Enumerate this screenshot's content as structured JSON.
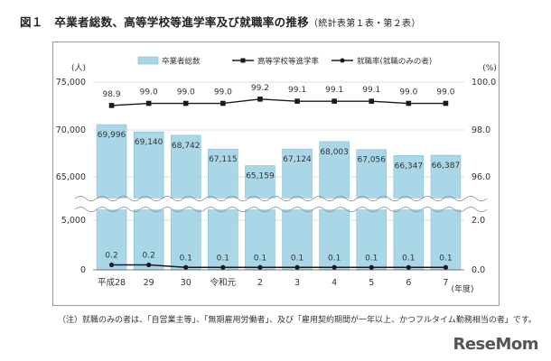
{
  "title": {
    "main": "図１　卒業者総数、高等学校等進学率及び就職率の推移",
    "sub": "（統計表第１表・第２表）"
  },
  "note": "（注）就職のみの者は、「自営業主等」、「無期雇用労働者」、及び「雇用契約期間が一年以上、かつフルタイム勤務相当の者」です。",
  "watermark": "ReseMom",
  "colors": {
    "bar": "#a9d7e8",
    "bar_stroke": "#7fbdd6",
    "line": "#1a1a1a",
    "grid": "#d0d0d0"
  },
  "chart_data": {
    "type": "bar",
    "title": "",
    "categories": [
      "平成28",
      "29",
      "30",
      "令和元",
      "2",
      "3",
      "4",
      "5",
      "6",
      "7"
    ],
    "x_unit": "(年度)",
    "y_left": {
      "unit": "(人)",
      "ticks_upper": [
        "75,000",
        "70,000",
        "65,000"
      ],
      "ticks_lower": [
        "5,000",
        "0"
      ],
      "broken_axis": true,
      "upper_range": [
        61500,
        75000
      ],
      "lower_range": [
        0,
        5000
      ]
    },
    "y_right": {
      "unit": "(%)",
      "ticks_upper": [
        "100.0",
        "98.0",
        "96.0"
      ],
      "ticks_lower": [
        "2.0",
        "0.0"
      ],
      "upper_range": [
        94.6,
        100.0
      ],
      "lower_range": [
        0,
        2.0
      ]
    },
    "legend_position": "top",
    "series": [
      {
        "name": "卒業者総数",
        "type": "bar",
        "axis": "left",
        "values": [
          69996,
          69140,
          68742,
          67115,
          65159,
          67124,
          68003,
          67056,
          66347,
          66387
        ],
        "labels": [
          "69,996",
          "69,140",
          "68,742",
          "67,115",
          "65,159",
          "67,124",
          "68,003",
          "67,056",
          "66,347",
          "66,387"
        ]
      },
      {
        "name": "高等学校等進学率",
        "type": "line",
        "marker": "square",
        "axis": "right",
        "values": [
          98.9,
          99.0,
          99.0,
          99.0,
          99.2,
          99.1,
          99.1,
          99.1,
          99.0,
          99.0
        ],
        "labels": [
          "98.9",
          "99.0",
          "99.0",
          "99.0",
          "99.2",
          "99.1",
          "99.1",
          "99.1",
          "99.0",
          "99.0"
        ]
      },
      {
        "name": "就職率(就職のみの者)",
        "type": "line",
        "marker": "circle",
        "axis": "right",
        "values": [
          0.2,
          0.2,
          0.1,
          0.1,
          0.1,
          0.1,
          0.1,
          0.1,
          0.1,
          0.1
        ],
        "labels": [
          "0.2",
          "0.2",
          "0.1",
          "0.1",
          "0.1",
          "0.1",
          "0.1",
          "0.1",
          "0.1",
          "0.1"
        ]
      }
    ]
  }
}
